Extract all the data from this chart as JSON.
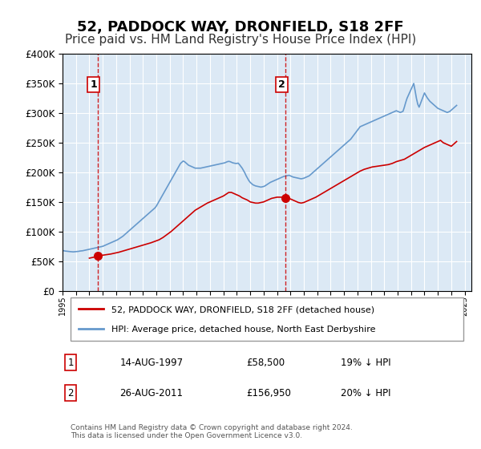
{
  "title": "52, PADDOCK WAY, DRONFIELD, S18 2FF",
  "subtitle": "Price paid vs. HM Land Registry's House Price Index (HPI)",
  "title_fontsize": 13,
  "subtitle_fontsize": 11,
  "background_color": "#ffffff",
  "plot_bg_color": "#dce9f5",
  "grid_color": "#ffffff",
  "ylim": [
    0,
    400000
  ],
  "yticks": [
    0,
    50000,
    100000,
    150000,
    200000,
    250000,
    300000,
    350000,
    400000
  ],
  "ytick_labels": [
    "£0",
    "£50K",
    "£100K",
    "£150K",
    "£200K",
    "£250K",
    "£300K",
    "£350K",
    "£400K"
  ],
  "xlim_start": 1995.0,
  "xlim_end": 2025.5,
  "purchase1_year": 1997.617,
  "purchase1_value": 58500,
  "purchase2_year": 2011.648,
  "purchase2_value": 156950,
  "red_line_color": "#cc0000",
  "blue_line_color": "#6699cc",
  "vline_color": "#cc0000",
  "marker_color": "#cc0000",
  "legend_label_red": "52, PADDOCK WAY, DRONFIELD, S18 2FF (detached house)",
  "legend_label_blue": "HPI: Average price, detached house, North East Derbyshire",
  "annotation1_label": "1",
  "annotation2_label": "2",
  "table_row1": [
    "1",
    "14-AUG-1997",
    "£58,500",
    "19% ↓ HPI"
  ],
  "table_row2": [
    "2",
    "26-AUG-2011",
    "£156,950",
    "20% ↓ HPI"
  ],
  "footer_text": "Contains HM Land Registry data © Crown copyright and database right 2024.\nThis data is licensed under the Open Government Licence v3.0.",
  "hpi_data": {
    "years": [
      1995.0,
      1995.1,
      1995.2,
      1995.3,
      1995.4,
      1995.5,
      1995.6,
      1995.7,
      1995.8,
      1995.9,
      1996.0,
      1996.1,
      1996.2,
      1996.3,
      1996.4,
      1996.5,
      1996.6,
      1996.7,
      1996.8,
      1996.9,
      1997.0,
      1997.1,
      1997.2,
      1997.3,
      1997.4,
      1997.5,
      1997.6,
      1997.7,
      1997.8,
      1997.9,
      1998.0,
      1998.1,
      1998.2,
      1998.3,
      1998.4,
      1998.5,
      1998.6,
      1998.7,
      1998.8,
      1998.9,
      1999.0,
      1999.1,
      1999.2,
      1999.3,
      1999.4,
      1999.5,
      1999.6,
      1999.7,
      1999.8,
      1999.9,
      2000.0,
      2000.1,
      2000.2,
      2000.3,
      2000.4,
      2000.5,
      2000.6,
      2000.7,
      2000.8,
      2000.9,
      2001.0,
      2001.1,
      2001.2,
      2001.3,
      2001.4,
      2001.5,
      2001.6,
      2001.7,
      2001.8,
      2001.9,
      2002.0,
      2002.1,
      2002.2,
      2002.3,
      2002.4,
      2002.5,
      2002.6,
      2002.7,
      2002.8,
      2002.9,
      2003.0,
      2003.1,
      2003.2,
      2003.3,
      2003.4,
      2003.5,
      2003.6,
      2003.7,
      2003.8,
      2003.9,
      2004.0,
      2004.1,
      2004.2,
      2004.3,
      2004.4,
      2004.5,
      2004.6,
      2004.7,
      2004.8,
      2004.9,
      2005.0,
      2005.1,
      2005.2,
      2005.3,
      2005.4,
      2005.5,
      2005.6,
      2005.7,
      2005.8,
      2005.9,
      2006.0,
      2006.1,
      2006.2,
      2006.3,
      2006.4,
      2006.5,
      2006.6,
      2006.7,
      2006.8,
      2006.9,
      2007.0,
      2007.1,
      2007.2,
      2007.3,
      2007.4,
      2007.5,
      2007.6,
      2007.7,
      2007.8,
      2007.9,
      2008.0,
      2008.1,
      2008.2,
      2008.3,
      2008.4,
      2008.5,
      2008.6,
      2008.7,
      2008.8,
      2008.9,
      2009.0,
      2009.1,
      2009.2,
      2009.3,
      2009.4,
      2009.5,
      2009.6,
      2009.7,
      2009.8,
      2009.9,
      2010.0,
      2010.1,
      2010.2,
      2010.3,
      2010.4,
      2010.5,
      2010.6,
      2010.7,
      2010.8,
      2010.9,
      2011.0,
      2011.1,
      2011.2,
      2011.3,
      2011.4,
      2011.5,
      2011.6,
      2011.7,
      2011.8,
      2011.9,
      2012.0,
      2012.1,
      2012.2,
      2012.3,
      2012.4,
      2012.5,
      2012.6,
      2012.7,
      2012.8,
      2012.9,
      2013.0,
      2013.1,
      2013.2,
      2013.3,
      2013.4,
      2013.5,
      2013.6,
      2013.7,
      2013.8,
      2013.9,
      2014.0,
      2014.1,
      2014.2,
      2014.3,
      2014.4,
      2014.5,
      2014.6,
      2014.7,
      2014.8,
      2014.9,
      2015.0,
      2015.1,
      2015.2,
      2015.3,
      2015.4,
      2015.5,
      2015.6,
      2015.7,
      2015.8,
      2015.9,
      2016.0,
      2016.1,
      2016.2,
      2016.3,
      2016.4,
      2016.5,
      2016.6,
      2016.7,
      2016.8,
      2016.9,
      2017.0,
      2017.1,
      2017.2,
      2017.3,
      2017.4,
      2017.5,
      2017.6,
      2017.7,
      2017.8,
      2017.9,
      2018.0,
      2018.1,
      2018.2,
      2018.3,
      2018.4,
      2018.5,
      2018.6,
      2018.7,
      2018.8,
      2018.9,
      2019.0,
      2019.1,
      2019.2,
      2019.3,
      2019.4,
      2019.5,
      2019.6,
      2019.7,
      2019.8,
      2019.9,
      2020.0,
      2020.1,
      2020.2,
      2020.3,
      2020.4,
      2020.5,
      2020.6,
      2020.7,
      2020.8,
      2020.9,
      2021.0,
      2021.1,
      2021.2,
      2021.3,
      2021.4,
      2021.5,
      2021.6,
      2021.7,
      2021.8,
      2021.9,
      2022.0,
      2022.1,
      2022.2,
      2022.3,
      2022.4,
      2022.5,
      2022.6,
      2022.7,
      2022.8,
      2022.9,
      2023.0,
      2023.1,
      2023.2,
      2023.3,
      2023.4,
      2023.5,
      2023.6,
      2023.7,
      2023.8,
      2023.9,
      2024.0,
      2024.1,
      2024.2,
      2024.3,
      2024.4
    ],
    "values": [
      68000,
      67500,
      67000,
      66800,
      66500,
      66200,
      66000,
      65800,
      65600,
      65800,
      66000,
      66200,
      66500,
      67000,
      67200,
      67500,
      68000,
      68500,
      69000,
      69500,
      70000,
      70500,
      71000,
      71500,
      72000,
      72500,
      73000,
      73500,
      74000,
      74500,
      75000,
      76000,
      77000,
      78000,
      79000,
      80000,
      81000,
      82000,
      83000,
      84000,
      85000,
      86000,
      87500,
      89000,
      90500,
      92000,
      94000,
      96000,
      98000,
      100000,
      102000,
      104000,
      106000,
      108000,
      110000,
      112000,
      114000,
      116000,
      118000,
      120000,
      122000,
      124000,
      126000,
      128000,
      130000,
      132000,
      134000,
      136000,
      138000,
      140000,
      143000,
      147000,
      151000,
      155000,
      159000,
      163000,
      167000,
      171000,
      175000,
      179000,
      183000,
      187000,
      191000,
      195000,
      199000,
      203000,
      207000,
      211000,
      215000,
      217000,
      219000,
      218000,
      216000,
      214000,
      212000,
      211000,
      210000,
      209000,
      208000,
      207000,
      207000,
      207000,
      207000,
      207000,
      207500,
      208000,
      208500,
      209000,
      209500,
      210000,
      210500,
      211000,
      211500,
      212000,
      212500,
      213000,
      213500,
      214000,
      214500,
      215000,
      215500,
      216000,
      217000,
      218000,
      218500,
      218000,
      217000,
      216000,
      215500,
      215000,
      215000,
      215500,
      213000,
      210000,
      207000,
      203000,
      199000,
      194000,
      190000,
      186000,
      183000,
      181000,
      179000,
      178000,
      177000,
      176500,
      176000,
      175500,
      175000,
      175500,
      176000,
      177000,
      178500,
      180000,
      181500,
      183000,
      184000,
      185000,
      186000,
      187000,
      188000,
      189000,
      190000,
      191000,
      192000,
      193000,
      193500,
      194000,
      194500,
      195000,
      194000,
      193000,
      192000,
      191500,
      191000,
      190500,
      190000,
      189500,
      189000,
      189500,
      190000,
      191000,
      192000,
      193000,
      194000,
      196000,
      198000,
      200000,
      202000,
      204000,
      206000,
      208000,
      210000,
      212000,
      214000,
      216000,
      218000,
      220000,
      222000,
      224000,
      226000,
      228000,
      230000,
      232000,
      234000,
      236000,
      238000,
      240000,
      242000,
      244000,
      246000,
      248000,
      250000,
      252000,
      254000,
      256000,
      259000,
      262000,
      265000,
      268000,
      271000,
      274000,
      277000,
      278000,
      279000,
      280000,
      281000,
      282000,
      283000,
      284000,
      285000,
      286000,
      287000,
      288000,
      289000,
      290000,
      291000,
      292000,
      293000,
      294000,
      295000,
      296000,
      297000,
      298000,
      299000,
      300000,
      301000,
      302000,
      303000,
      304000,
      303000,
      302000,
      301000,
      302000,
      303000,
      310000,
      318000,
      325000,
      330000,
      335000,
      340000,
      345000,
      350000,
      338000,
      325000,
      315000,
      310000,
      316000,
      322000,
      328000,
      334000,
      330000,
      326000,
      323000,
      320000,
      318000,
      316000,
      314000,
      312000,
      310000,
      308000,
      307000,
      306000,
      305000,
      304000,
      303000,
      302000,
      301000,
      302000,
      303000,
      305000,
      307000,
      309000,
      311000,
      313000
    ]
  },
  "red_data": {
    "years": [
      1997.0,
      1997.2,
      1997.4,
      1997.617,
      1997.8,
      1998.0,
      1998.3,
      1998.6,
      1998.9,
      1999.2,
      1999.5,
      1999.8,
      2000.1,
      2000.4,
      2000.7,
      2001.0,
      2001.3,
      2001.6,
      2001.9,
      2002.2,
      2002.5,
      2002.8,
      2003.1,
      2003.4,
      2003.7,
      2004.0,
      2004.3,
      2004.6,
      2004.9,
      2005.2,
      2005.5,
      2005.8,
      2006.1,
      2006.4,
      2006.7,
      2007.0,
      2007.2,
      2007.4,
      2007.6,
      2007.8,
      2008.0,
      2008.2,
      2008.4,
      2008.6,
      2008.8,
      2009.0,
      2009.2,
      2009.4,
      2009.6,
      2009.8,
      2010.0,
      2010.2,
      2010.4,
      2010.6,
      2010.8,
      2011.0,
      2011.2,
      2011.4,
      2011.648,
      2011.8,
      2012.0,
      2012.2,
      2012.4,
      2012.6,
      2012.8,
      2013.0,
      2013.3,
      2013.6,
      2013.9,
      2014.2,
      2014.5,
      2014.8,
      2015.1,
      2015.4,
      2015.7,
      2016.0,
      2016.3,
      2016.6,
      2016.9,
      2017.2,
      2017.5,
      2017.8,
      2018.1,
      2018.4,
      2018.7,
      2019.0,
      2019.3,
      2019.6,
      2019.9,
      2020.2,
      2020.5,
      2020.8,
      2021.1,
      2021.4,
      2021.7,
      2022.0,
      2022.2,
      2022.4,
      2022.6,
      2022.8,
      2023.0,
      2023.2,
      2023.4,
      2023.6,
      2023.8,
      2024.0,
      2024.2,
      2024.4
    ],
    "values": [
      55000,
      56000,
      57000,
      58500,
      59000,
      60000,
      61000,
      62000,
      63500,
      65000,
      67000,
      69000,
      71000,
      73000,
      75000,
      77000,
      79000,
      81000,
      83500,
      86000,
      90000,
      95000,
      100000,
      106000,
      112000,
      118000,
      124000,
      130000,
      136000,
      140000,
      144000,
      148000,
      151000,
      154000,
      157000,
      160000,
      163000,
      166000,
      166000,
      164000,
      162000,
      160000,
      157000,
      155000,
      153000,
      150000,
      149000,
      148000,
      148000,
      149000,
      150000,
      152000,
      154000,
      156000,
      157000,
      158000,
      158000,
      158000,
      156950,
      156000,
      155000,
      153000,
      151000,
      149000,
      148000,
      149000,
      152000,
      155000,
      158000,
      162000,
      166000,
      170000,
      174000,
      178000,
      182000,
      186000,
      190000,
      194000,
      198000,
      202000,
      205000,
      207000,
      209000,
      210000,
      211000,
      212000,
      213000,
      215000,
      218000,
      220000,
      222000,
      226000,
      230000,
      234000,
      238000,
      242000,
      244000,
      246000,
      248000,
      250000,
      252000,
      254000,
      250000,
      248000,
      246000,
      244000,
      248000,
      252000
    ]
  }
}
